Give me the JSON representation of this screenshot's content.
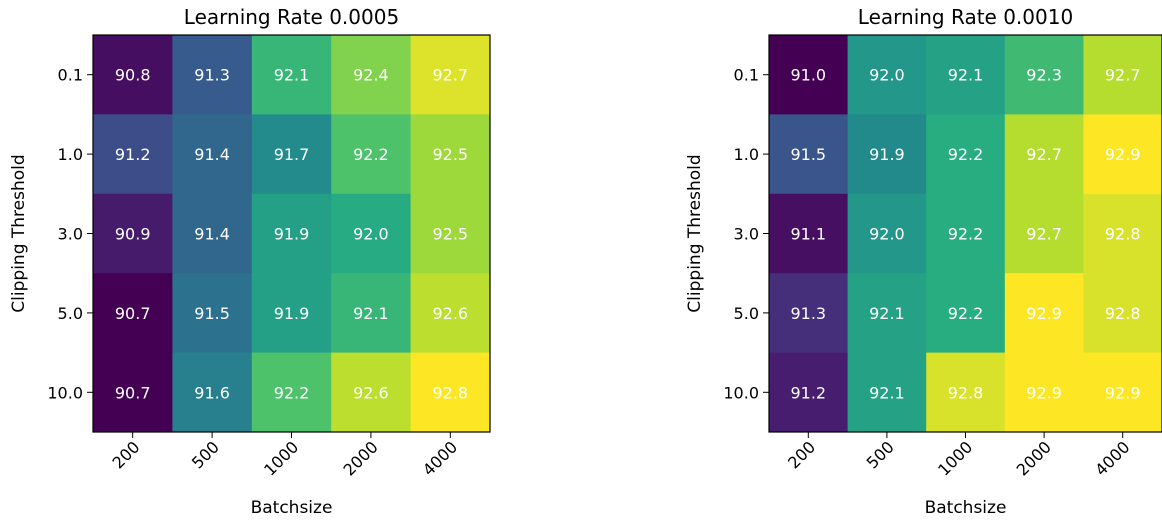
{
  "chart_data": [
    {
      "type": "heatmap",
      "title": "Learning Rate 0.0005",
      "xlabel": "Batchsize",
      "ylabel": "Clipping Threshold",
      "x_categories": [
        "200",
        "500",
        "1000",
        "2000",
        "4000"
      ],
      "y_categories": [
        "0.1",
        "1.0",
        "3.0",
        "5.0",
        "10.0"
      ],
      "values": [
        [
          90.8,
          91.3,
          92.1,
          92.4,
          92.7
        ],
        [
          91.2,
          91.4,
          91.7,
          92.2,
          92.5
        ],
        [
          90.9,
          91.4,
          91.9,
          92.0,
          92.5
        ],
        [
          90.7,
          91.5,
          91.9,
          92.1,
          92.6
        ],
        [
          90.7,
          91.6,
          92.2,
          92.6,
          92.8
        ]
      ],
      "colormap": "viridis"
    },
    {
      "type": "heatmap",
      "title": "Learning Rate 0.0010",
      "xlabel": "Batchsize",
      "ylabel": "Clipping Threshold",
      "x_categories": [
        "200",
        "500",
        "1000",
        "2000",
        "4000"
      ],
      "y_categories": [
        "0.1",
        "1.0",
        "3.0",
        "5.0",
        "10.0"
      ],
      "values": [
        [
          91.0,
          92.0,
          92.1,
          92.3,
          92.7
        ],
        [
          91.5,
          91.9,
          92.2,
          92.7,
          92.9
        ],
        [
          91.1,
          92.0,
          92.2,
          92.7,
          92.8
        ],
        [
          91.3,
          92.1,
          92.2,
          92.9,
          92.8
        ],
        [
          91.2,
          92.1,
          92.8,
          92.9,
          92.9
        ]
      ],
      "colormap": "viridis"
    }
  ]
}
